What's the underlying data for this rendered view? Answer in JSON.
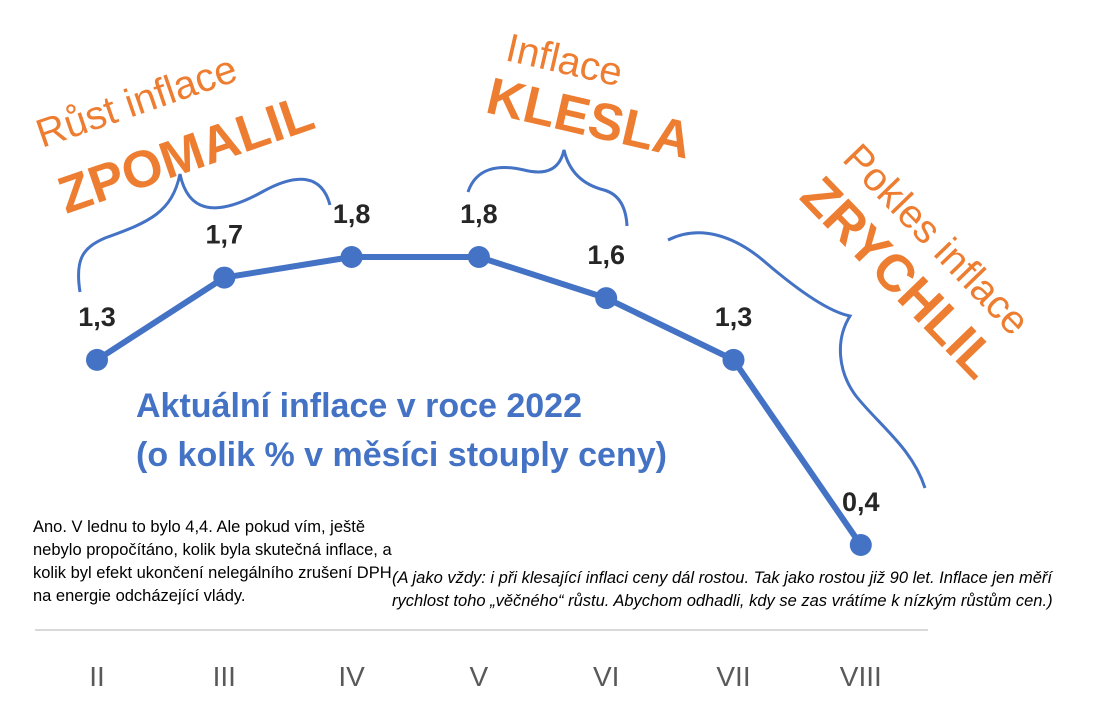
{
  "chart_data": {
    "type": "line",
    "title": "Aktuální inflace v roce 2022",
    "subtitle": "(o kolik % v měsíci stouply ceny)",
    "categories": [
      "II",
      "III",
      "IV",
      "V",
      "VI",
      "VII",
      "VIII"
    ],
    "values": [
      1.3,
      1.7,
      1.8,
      1.8,
      1.6,
      1.3,
      0.4
    ],
    "value_labels": [
      "1,3",
      "1,7",
      "1,8",
      "1,8",
      "1,6",
      "1,3",
      "0,4"
    ],
    "ylim": [
      0.4,
      1.8
    ],
    "grid": false,
    "legend": "none",
    "colors": {
      "line": "#4472c4",
      "annotation": "#ed7d31",
      "axis": "#d9d9d9"
    }
  },
  "annotations": {
    "slowed": {
      "line1": "Růst inflace",
      "line2": "ZPOMALIL"
    },
    "fell": {
      "line1": "Inflace",
      "line2": "KLESLA"
    },
    "accelerated": {
      "line1": "Pokles inflace",
      "line2": "ZRYCHLIL"
    }
  },
  "notes": {
    "left": "Ano. V lednu to bylo 4,4. Ale pokud vím, ještě nebylo propočítáno, kolik byla skutečná inflace, a kolik byl efekt ukončení nelegálního zrušení DPH na energie odcházející vlády.",
    "right": "(A jako vždy: i při klesající inflaci ceny dál rostou. Tak jako rostou již 90 let. Inflace jen měří rychlost toho „věčného“ růstu. Abychom odhadli, kdy se zas vrátíme k nízkým růstům cen.)"
  }
}
